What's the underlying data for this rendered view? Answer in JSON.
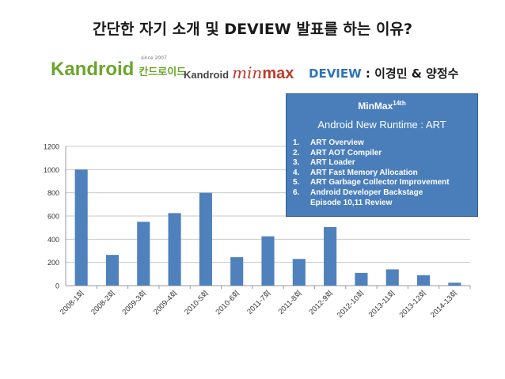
{
  "slide": {
    "title": "간단한 자기 소개 및 DEVIEW 발표를 하는 이유?",
    "logo_kandroid": "Kandroid",
    "logo_kandroid_kr": "칸드로이드",
    "logo_since": "since 2007",
    "logo2_kandroid": "Kandroid",
    "logo2_min": "min",
    "logo2_max": "max",
    "speaker_label": "DEVIEW",
    "speaker_names": " : 이경민 & 양정수"
  },
  "infobox": {
    "title": "MinMax",
    "title_sup": "14th",
    "subtitle": "Android New Runtime : ART",
    "items": [
      {
        "num": "1.",
        "text": "ART Overview"
      },
      {
        "num": "2.",
        "text": "ART AOT Compiler"
      },
      {
        "num": "3.",
        "text": "ART Loader"
      },
      {
        "num": "4.",
        "text": "ART Fast Memory Allocation"
      },
      {
        "num": "5.",
        "text": "ART Garbage Collector Improvement"
      },
      {
        "num": "6.",
        "text": "Android Developer Backstage"
      }
    ],
    "extra": "Episode 10,11 Review"
  },
  "chart_data": {
    "type": "bar",
    "categories": [
      "2008-1회",
      "2008-2회",
      "2009-3회",
      "2009-4회",
      "2010-5회",
      "2010-6회",
      "2011-7회",
      "2011-8회",
      "2012-9회",
      "2012-10회",
      "2013-11회",
      "2013-12회",
      "2014-13회"
    ],
    "values": [
      1000,
      265,
      550,
      625,
      800,
      245,
      425,
      230,
      505,
      110,
      140,
      90,
      25
    ],
    "yticks": [
      0,
      200,
      400,
      600,
      800,
      1000,
      1200
    ],
    "ylim": [
      0,
      1200
    ],
    "bar_color": "#4f81bd",
    "grid": true
  }
}
